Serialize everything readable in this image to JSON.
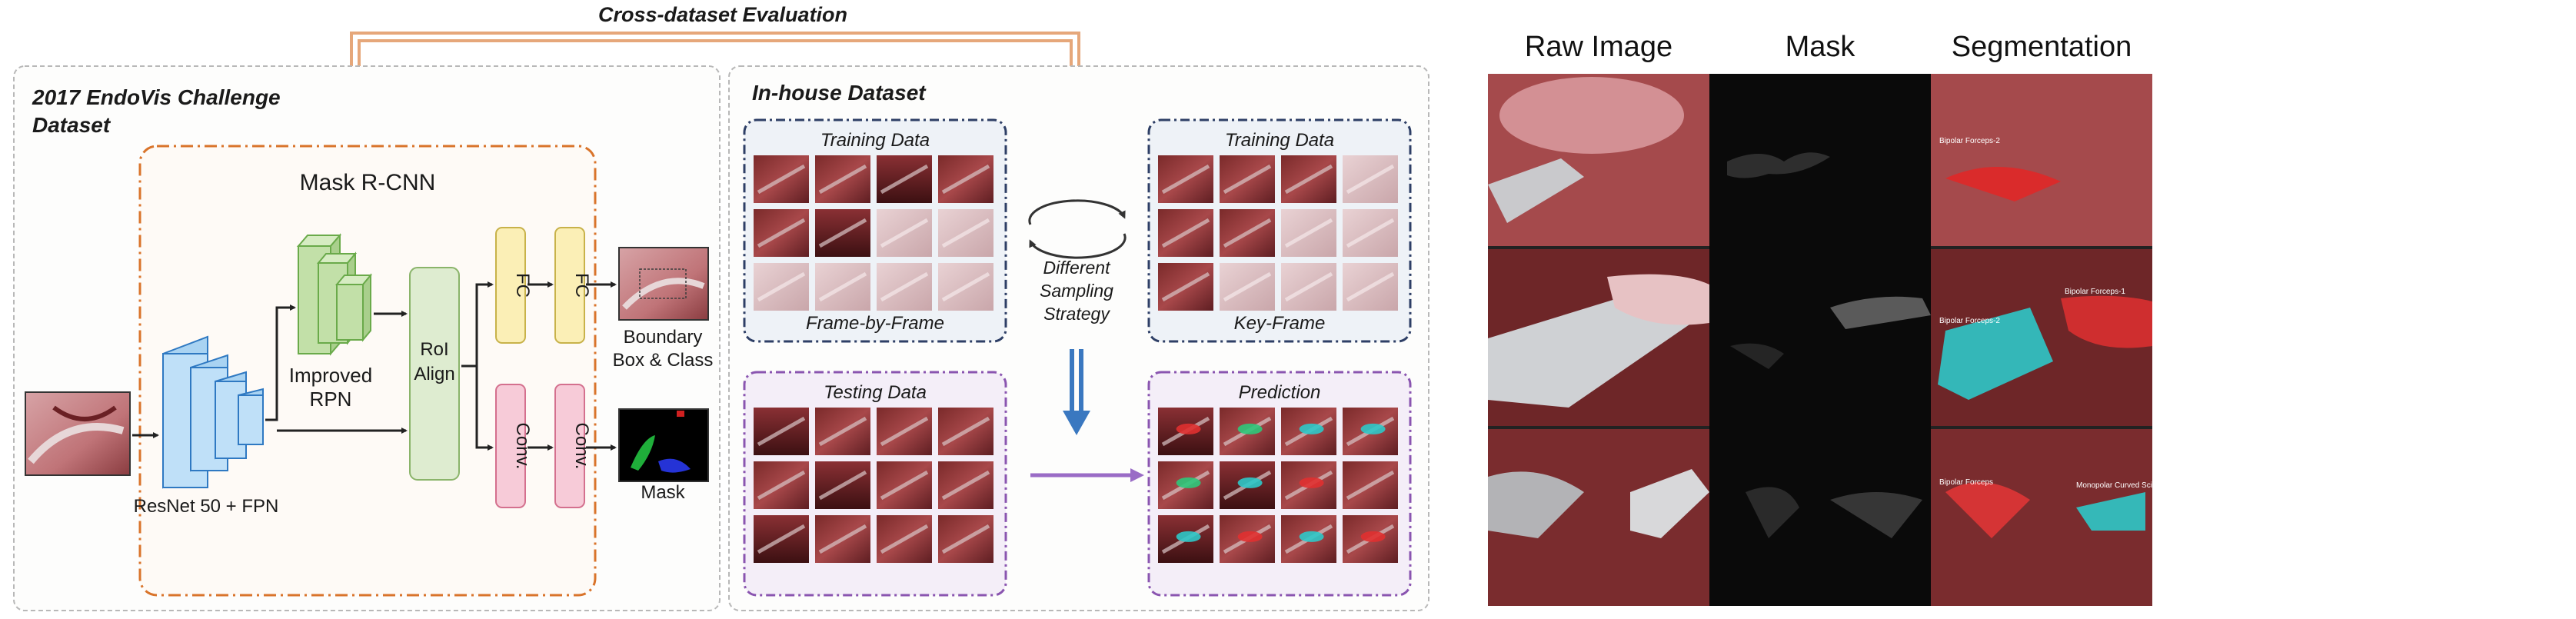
{
  "cross_dataset": {
    "label": "Cross-dataset Evaluation"
  },
  "endovis": {
    "title_line1": "2017 EndoVis Challenge",
    "title_line2": "Dataset"
  },
  "maskrcnn": {
    "title": "Mask R-CNN",
    "backbone_label": "ResNet 50 + FPN",
    "rpn_line1": "Improved",
    "rpn_line2": "RPN",
    "roi_line1": "RoI",
    "roi_line2": "Align",
    "fc1": "FC",
    "fc2": "FC",
    "conv1": "Conv.",
    "conv2": "Conv.",
    "boundary_line1": "Boundary",
    "boundary_line2": "Box & Class",
    "mask_label": "Mask"
  },
  "inhouse": {
    "title": "In-house Dataset",
    "training_left_title": "Training Data",
    "training_left_caption": "Frame-by-Frame",
    "training_right_title": "Training Data",
    "training_right_caption": "Key-Frame",
    "testing_title": "Testing Data",
    "prediction_title": "Prediction",
    "sampling_line1": "Different",
    "sampling_line2": "Sampling",
    "sampling_line3": "Strategy"
  },
  "results_panel": {
    "col_raw": "Raw Image",
    "col_mask": "Mask",
    "col_seg": "Segmentation",
    "seg_tags": [
      "Bipolar Forceps-2",
      "Bipolar Forceps-1",
      "Bipolar Forceps-2",
      "Bipolar Forceps",
      "Monopolar Curved Scissors"
    ]
  },
  "colors": {
    "orange_arrow": "#e0a070",
    "orange_dash": "#d9742b",
    "navy_dash": "#2e3f66",
    "purple_dash": "#8a55b0",
    "blue_down": "#3a78c0",
    "purple_arrow": "#9a6cc6",
    "resnet_blue": "#a9d3f2",
    "rpn_green": "#c2e0a8",
    "fc_yellow": "#fbefb6",
    "conv_pink": "#f7cbd8",
    "roi_green": "#deecd0"
  }
}
